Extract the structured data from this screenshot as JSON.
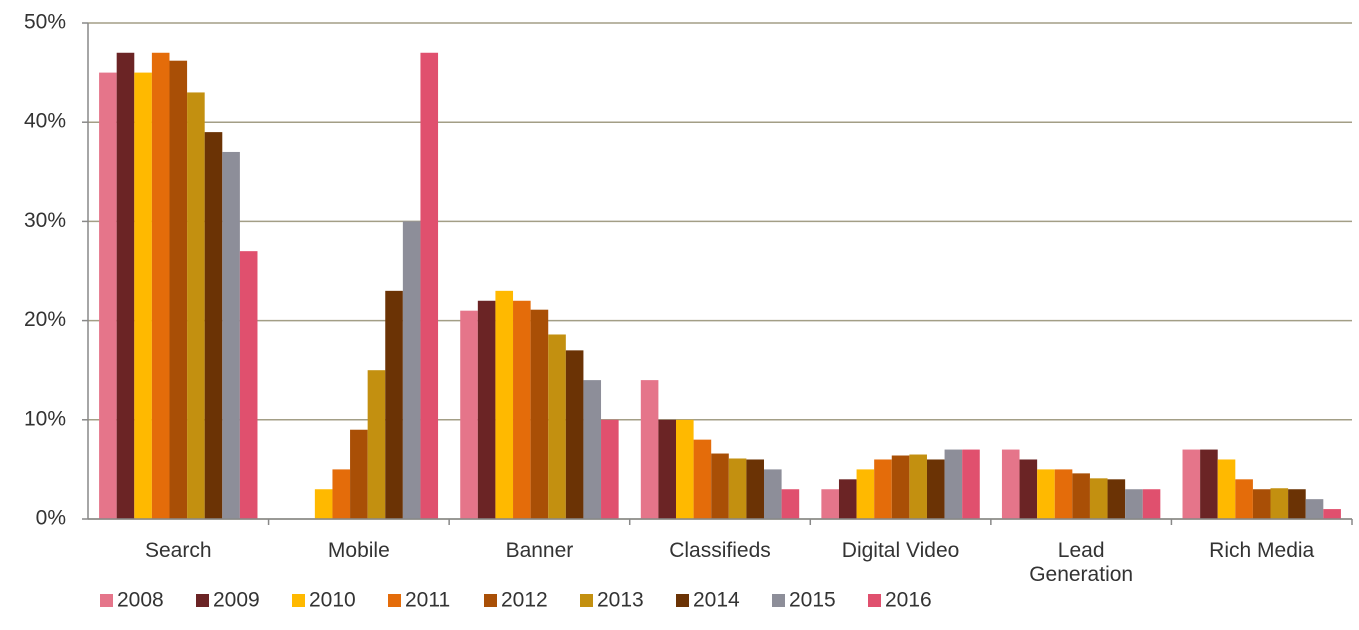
{
  "chart_data": {
    "type": "bar",
    "categories": [
      "Search",
      "Mobile",
      "Banner",
      "Classifieds",
      "Digital Video",
      "Lead Generation",
      "Rich Media"
    ],
    "series": [
      {
        "name": "2008",
        "color": "#e5758a",
        "values": [
          45,
          null,
          21,
          14,
          3,
          7,
          7
        ]
      },
      {
        "name": "2009",
        "color": "#6b2425",
        "values": [
          47,
          null,
          22,
          10,
          4,
          6,
          7
        ]
      },
      {
        "name": "2010",
        "color": "#ffb900",
        "values": [
          45,
          3,
          23,
          10,
          5,
          5,
          6
        ]
      },
      {
        "name": "2011",
        "color": "#e46c0a",
        "values": [
          47,
          5,
          22,
          8,
          6,
          5,
          4
        ]
      },
      {
        "name": "2012",
        "color": "#a94f06",
        "values": [
          46.2,
          9,
          21.1,
          6.6,
          6.4,
          4.6,
          3
        ]
      },
      {
        "name": "2013",
        "color": "#c39010",
        "values": [
          43,
          15,
          18.6,
          6.1,
          6.5,
          4.1,
          3.1
        ]
      },
      {
        "name": "2014",
        "color": "#6b3305",
        "values": [
          39,
          23,
          17,
          6,
          6,
          4,
          3
        ]
      },
      {
        "name": "2015",
        "color": "#8d8e99",
        "values": [
          37,
          30,
          14,
          5,
          7,
          3,
          2
        ]
      },
      {
        "name": "2016",
        "color": "#e0506e",
        "values": [
          27,
          47,
          10,
          3,
          7,
          3,
          1
        ]
      }
    ],
    "ylim": [
      0,
      50
    ],
    "yticks": [
      {
        "value": 0,
        "label": "0%"
      },
      {
        "value": 10,
        "label": "10%"
      },
      {
        "value": 20,
        "label": "20%"
      },
      {
        "value": 30,
        "label": "30%"
      },
      {
        "value": 40,
        "label": "40%"
      },
      {
        "value": 50,
        "label": "50%"
      }
    ],
    "grid": true,
    "legend": "bottom"
  }
}
